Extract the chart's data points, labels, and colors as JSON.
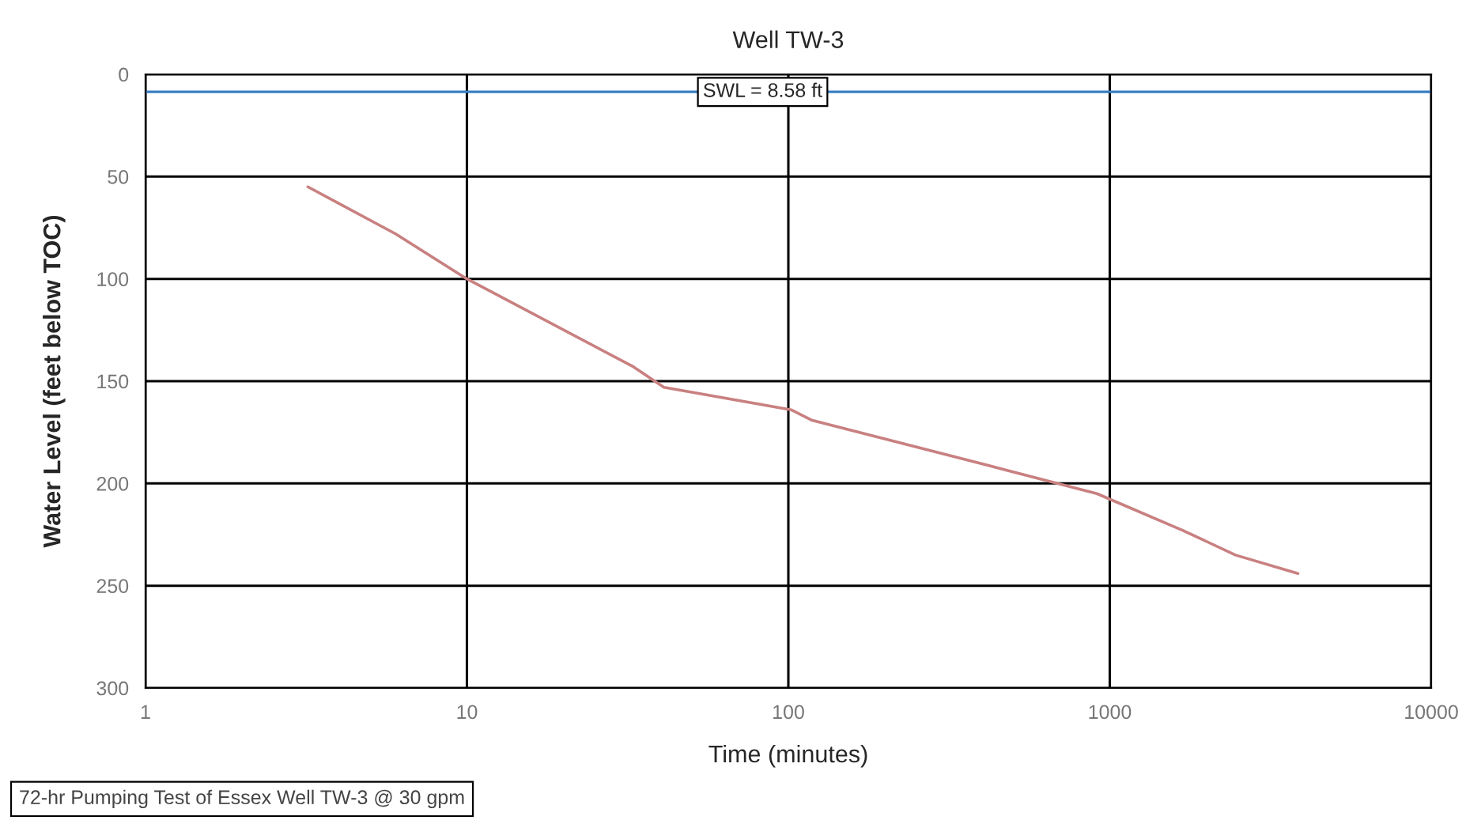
{
  "chart_data": {
    "type": "line",
    "title": "Well TW-3",
    "xlabel": "Time (minutes)",
    "ylabel": "Water Level (feet below TOC)",
    "log": "x",
    "xlim": [
      1,
      10000
    ],
    "xticks": [
      1,
      10,
      100,
      1000,
      10000
    ],
    "ylim": [
      300,
      0
    ],
    "yticks": [
      0,
      50,
      100,
      150,
      200,
      250,
      300
    ],
    "grid": true,
    "legend": false,
    "series": [
      {
        "color": "#c98080",
        "x": [
          3.2,
          6,
          10,
          33,
          41,
          102,
          118,
          414,
          912,
          1690,
          2460,
          3850
        ],
        "values": [
          55,
          78,
          100,
          143,
          153,
          164,
          169,
          191,
          205,
          223,
          235,
          244
        ]
      }
    ],
    "ref_lines": [
      {
        "axis": "y",
        "value": 8.58,
        "label": "SWL = 8.58 ft",
        "color": "#3a7fc4"
      }
    ],
    "annotations": [
      "72-hr Pumping Test of Essex Well TW-3 @ 30 gpm"
    ]
  }
}
